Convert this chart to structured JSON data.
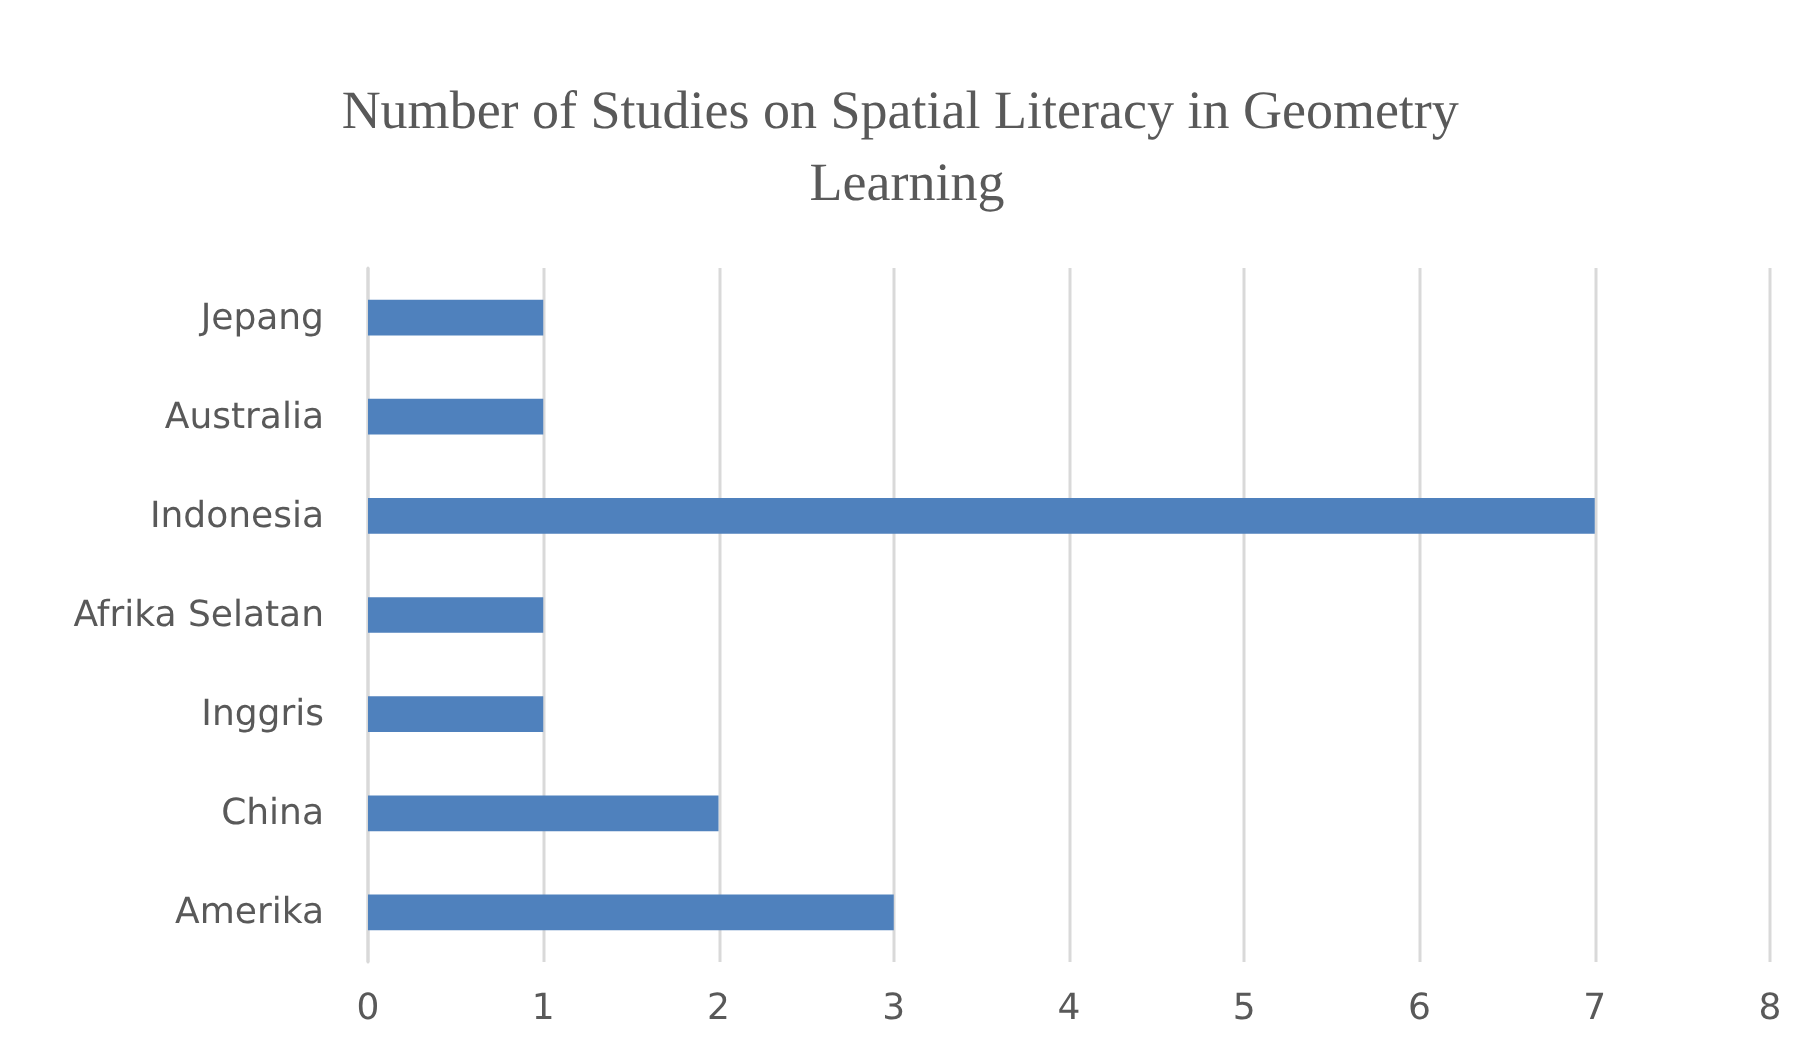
{
  "chart_data": {
    "type": "bar",
    "orientation": "horizontal",
    "title": "Number of Studies on Spatial Literacy in Geometry Learning",
    "categories": [
      "Jepang",
      "Australia",
      "Indonesia",
      "Afrika Selatan",
      "Inggris",
      "China",
      "Amerika"
    ],
    "values": [
      1,
      1,
      7,
      1,
      1,
      2,
      3
    ],
    "color": "#4f81bd",
    "xlim": [
      0,
      8
    ],
    "xticks": [
      0,
      1,
      2,
      3,
      4,
      5,
      6,
      7,
      8
    ],
    "grid": "x"
  }
}
